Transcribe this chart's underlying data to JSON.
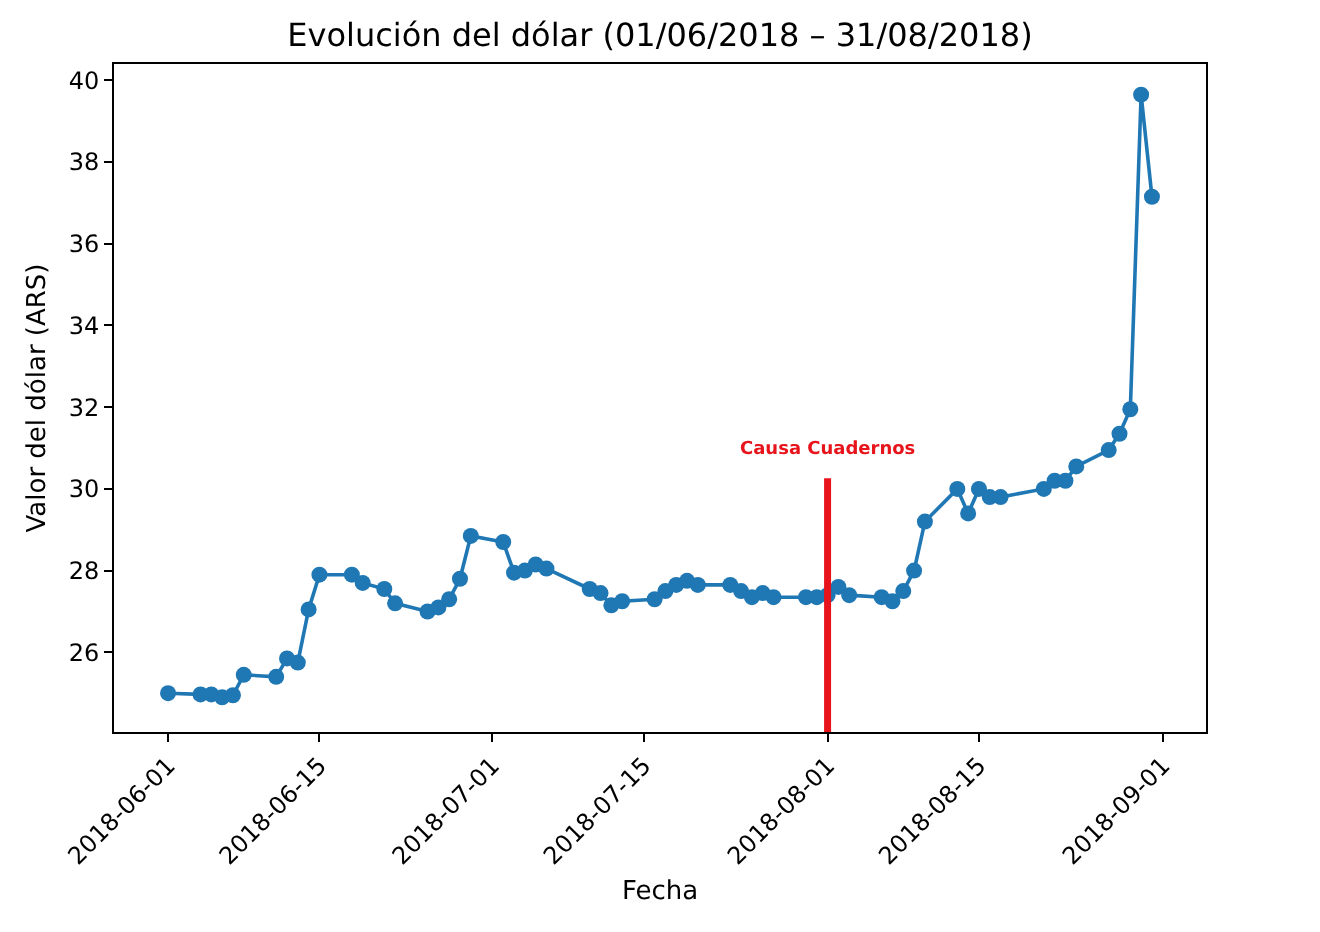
{
  "chart_data": {
    "type": "line",
    "title": "Evolución del dólar (01/06/2018 – 31/08/2018)",
    "xlabel": "Fecha",
    "ylabel": "Valor del dólar (ARS)",
    "x": [
      "2018-06-01",
      "2018-06-04",
      "2018-06-05",
      "2018-06-06",
      "2018-06-07",
      "2018-06-08",
      "2018-06-11",
      "2018-06-12",
      "2018-06-13",
      "2018-06-14",
      "2018-06-15",
      "2018-06-18",
      "2018-06-19",
      "2018-06-21",
      "2018-06-22",
      "2018-06-25",
      "2018-06-26",
      "2018-06-27",
      "2018-06-28",
      "2018-06-29",
      "2018-07-02",
      "2018-07-03",
      "2018-07-04",
      "2018-07-05",
      "2018-07-06",
      "2018-07-10",
      "2018-07-11",
      "2018-07-12",
      "2018-07-13",
      "2018-07-16",
      "2018-07-17",
      "2018-07-18",
      "2018-07-19",
      "2018-07-20",
      "2018-07-23",
      "2018-07-24",
      "2018-07-25",
      "2018-07-26",
      "2018-07-27",
      "2018-07-30",
      "2018-07-31",
      "2018-08-01",
      "2018-08-02",
      "2018-08-03",
      "2018-08-06",
      "2018-08-07",
      "2018-08-08",
      "2018-08-09",
      "2018-08-10",
      "2018-08-13",
      "2018-08-14",
      "2018-08-15",
      "2018-08-16",
      "2018-08-17",
      "2018-08-21",
      "2018-08-22",
      "2018-08-23",
      "2018-08-24",
      "2018-08-27",
      "2018-08-28",
      "2018-08-29",
      "2018-08-30",
      "2018-08-31"
    ],
    "series": [
      {
        "color": "#1f77b4",
        "values": [
          25.0,
          24.97,
          24.97,
          24.9,
          24.95,
          25.45,
          25.4,
          25.85,
          25.75,
          27.05,
          27.9,
          27.9,
          27.7,
          27.55,
          27.2,
          27.0,
          27.1,
          27.3,
          27.8,
          28.85,
          28.7,
          27.95,
          28.0,
          28.15,
          28.05,
          27.55,
          27.45,
          27.15,
          27.25,
          27.3,
          27.5,
          27.65,
          27.75,
          27.65,
          27.65,
          27.5,
          27.35,
          27.45,
          27.35,
          27.35,
          27.35,
          27.4,
          27.6,
          27.4,
          27.35,
          27.25,
          27.5,
          28.0,
          29.2,
          30.0,
          29.4,
          30.0,
          29.8,
          29.8,
          30.0,
          30.2,
          30.2,
          30.55,
          30.95,
          31.35,
          31.95,
          39.65,
          37.15
        ]
      }
    ],
    "xlim": [
      "2018-05-27",
      "2018-09-05"
    ],
    "xticks": [
      {
        "value": "2018-06-01",
        "label": "2018-06-01"
      },
      {
        "value": "2018-06-15",
        "label": "2018-06-15"
      },
      {
        "value": "2018-07-01",
        "label": "2018-07-01"
      },
      {
        "value": "2018-07-15",
        "label": "2018-07-15"
      },
      {
        "value": "2018-08-01",
        "label": "2018-08-01"
      },
      {
        "value": "2018-08-15",
        "label": "2018-08-15"
      },
      {
        "value": "2018-09-01",
        "label": "2018-09-01"
      }
    ],
    "ylim": [
      24.05,
      40.4
    ],
    "yticks": [
      26,
      28,
      30,
      32,
      34,
      36,
      38,
      40
    ],
    "ref_lines": [
      {
        "axis": "x",
        "value": "2018-08-01",
        "label": "Causa Cuadernos",
        "color": "#e8141c"
      }
    ],
    "marker": "circle",
    "line_style": "solid",
    "grid": false,
    "legend": false
  }
}
